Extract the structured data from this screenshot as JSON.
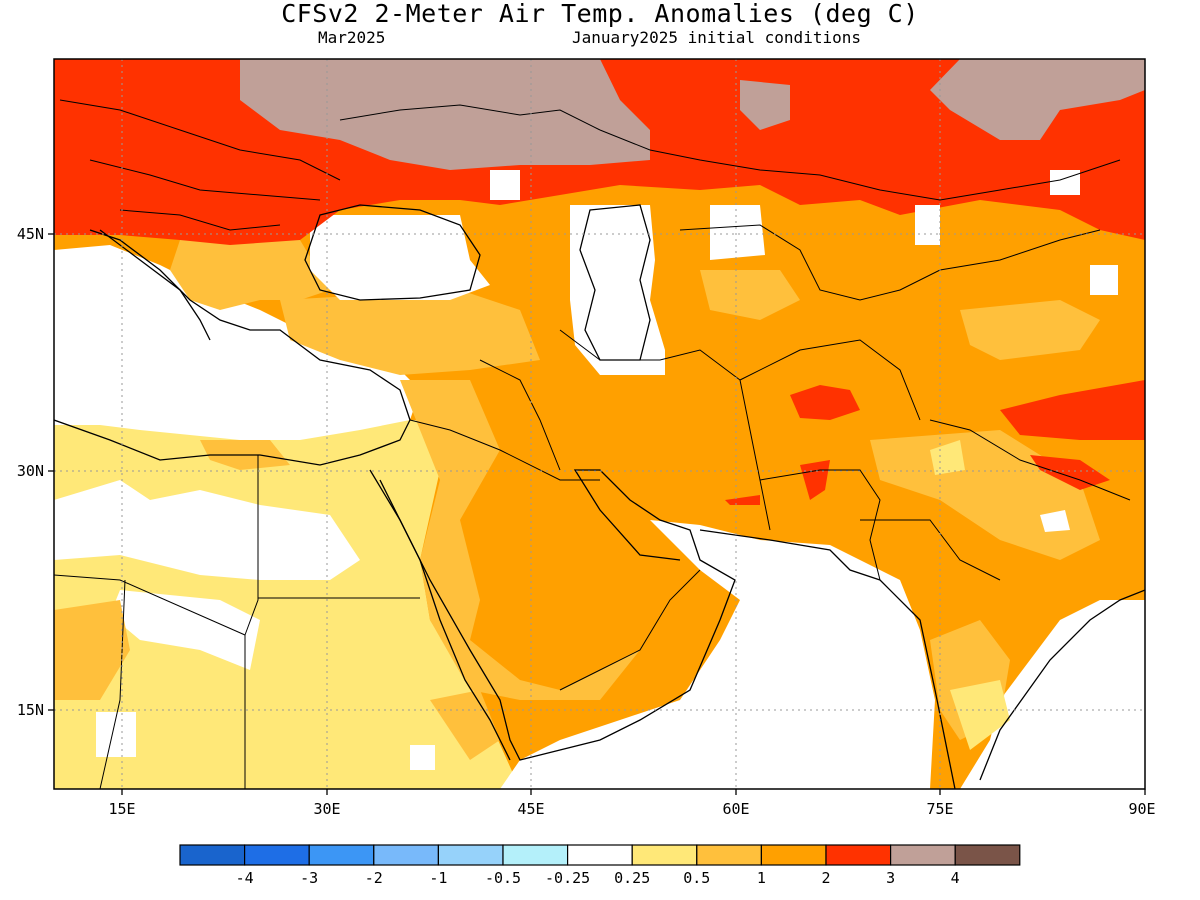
{
  "header": {
    "title": "CFSv2 2-Meter Air Temp. Anomalies (deg C)",
    "valid_month": "Mar2025",
    "init": "January2025 initial conditions"
  },
  "axes": {
    "x_ticks": [
      {
        "value": 15,
        "label": "15E"
      },
      {
        "value": 30,
        "label": "30E"
      },
      {
        "value": 45,
        "label": "45E"
      },
      {
        "value": 60,
        "label": "60E"
      },
      {
        "value": 75,
        "label": "75E"
      },
      {
        "value": 90,
        "label": "90E"
      }
    ],
    "y_ticks": [
      {
        "value": 15,
        "label": "15N"
      },
      {
        "value": 30,
        "label": "30N"
      },
      {
        "value": 45,
        "label": "45N"
      }
    ],
    "lon_range": [
      10,
      90
    ],
    "lat_range": [
      10,
      55
    ]
  },
  "colorbar": {
    "colors": [
      "#1964cd",
      "#1e6ee6",
      "#3c96f5",
      "#78b9fa",
      "#96d2fa",
      "#b4f0fa",
      "#ffffff",
      "#ffe878",
      "#ffc03c",
      "#ffa000",
      "#ff3200",
      "#c0a098",
      "#7a5448"
    ],
    "labels": [
      "-4",
      "-3",
      "-2",
      "-1",
      "-0.5",
      "-0.25",
      "0.25",
      "0.5",
      "1",
      "2",
      "3",
      "4"
    ]
  },
  "legend_categories": {
    "white": "#ffffff",
    "pale_yellow": "#ffe878",
    "light_orange": "#ffc03c",
    "orange": "#ffa000",
    "red": "#ff3200",
    "rosy_brown": "#c0a098"
  }
}
